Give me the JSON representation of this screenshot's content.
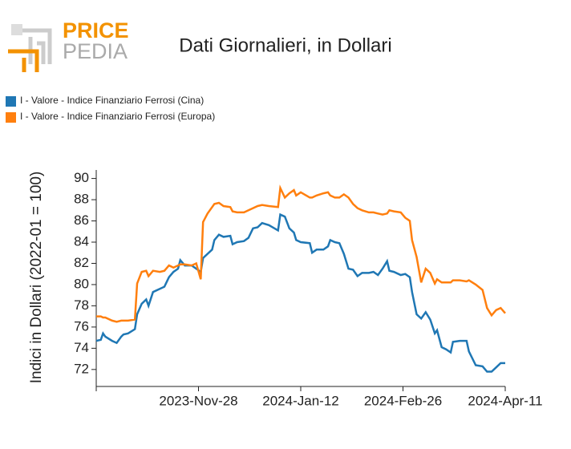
{
  "logo": {
    "top": "PRICE",
    "bottom": "PEDIA"
  },
  "chart_data": {
    "type": "line",
    "title": "Dati Giornalieri, in Dollari",
    "y_label": "Indici in Dollari (2022-01 = 100)",
    "legend": "top-left",
    "x": [
      "2023-10-14",
      "2023-10-16",
      "2023-10-17",
      "2023-10-18",
      "2023-10-21",
      "2023-10-23",
      "2023-10-25",
      "2023-10-26",
      "2023-10-28",
      "2023-10-31",
      "2023-11-01",
      "2023-11-03",
      "2023-11-05",
      "2023-11-06",
      "2023-11-08",
      "2023-11-11",
      "2023-11-13",
      "2023-11-15",
      "2023-11-17",
      "2023-11-19",
      "2023-11-20",
      "2023-11-22",
      "2023-11-25",
      "2023-11-27",
      "2023-11-29",
      "2023-11-30",
      "2023-12-02",
      "2023-12-04",
      "2023-12-05",
      "2023-12-07",
      "2023-12-09",
      "2023-12-12",
      "2023-12-13",
      "2023-12-15",
      "2023-12-18",
      "2023-12-20",
      "2023-12-22",
      "2023-12-24",
      "2023-12-26",
      "2023-12-29",
      "2024-01-02",
      "2024-01-03",
      "2024-01-05",
      "2024-01-07",
      "2024-01-09",
      "2024-01-10",
      "2024-01-12",
      "2024-01-16",
      "2024-01-17",
      "2024-01-19",
      "2024-01-22",
      "2024-01-24",
      "2024-01-25",
      "2024-01-27",
      "2024-01-29",
      "2024-01-31",
      "2024-02-02",
      "2024-02-04",
      "2024-02-06",
      "2024-02-08",
      "2024-02-11",
      "2024-02-13",
      "2024-02-15",
      "2024-02-17",
      "2024-02-19",
      "2024-02-20",
      "2024-02-22",
      "2024-02-25",
      "2024-02-27",
      "2024-02-29",
      "2024-03-01",
      "2024-03-03",
      "2024-03-05",
      "2024-03-07",
      "2024-03-09",
      "2024-03-11",
      "2024-03-12",
      "2024-03-14",
      "2024-03-16",
      "2024-03-18",
      "2024-03-19",
      "2024-03-22",
      "2024-03-25",
      "2024-03-26",
      "2024-03-29",
      "2024-04-01",
      "2024-04-03",
      "2024-04-05",
      "2024-04-07",
      "2024-04-09",
      "2024-04-11"
    ],
    "series": [
      {
        "name": "I - Valore - Indice Finanziario Ferrosi (Cina)",
        "color": "#1f77b4",
        "values": [
          74.7,
          74.8,
          75.4,
          75.1,
          74.7,
          74.5,
          75.1,
          75.3,
          75.4,
          75.8,
          77.2,
          78.2,
          78.6,
          78.0,
          79.3,
          79.6,
          79.8,
          80.7,
          81.2,
          81.5,
          82.3,
          81.8,
          81.8,
          81.5,
          81.2,
          82.5,
          82.9,
          83.3,
          84.2,
          84.7,
          84.5,
          84.6,
          83.8,
          84.0,
          84.1,
          84.4,
          85.3,
          85.4,
          85.8,
          85.6,
          85.1,
          86.6,
          86.4,
          85.3,
          84.9,
          84.2,
          84.0,
          83.9,
          83.0,
          83.3,
          83.3,
          83.6,
          84.2,
          84.0,
          83.9,
          82.9,
          81.5,
          81.4,
          80.8,
          81.1,
          81.1,
          81.2,
          80.9,
          81.5,
          82.2,
          81.3,
          81.2,
          80.9,
          81.0,
          80.7,
          79.3,
          77.2,
          76.8,
          77.4,
          76.7,
          75.4,
          75.7,
          74.1,
          73.9,
          73.6,
          74.6,
          74.7,
          74.7,
          73.7,
          72.4,
          72.3,
          71.8,
          71.8,
          72.2,
          72.6,
          72.6
        ]
      },
      {
        "name": "I - Valore - Indice Finanziario Ferrosi (Europa)",
        "color": "#ff7f0e",
        "values": [
          77.0,
          77.0,
          76.9,
          76.9,
          76.6,
          76.5,
          76.6,
          76.6,
          76.6,
          76.7,
          80.1,
          81.2,
          81.3,
          80.8,
          81.3,
          81.2,
          81.3,
          81.8,
          81.6,
          81.8,
          81.9,
          81.9,
          81.8,
          82.0,
          80.5,
          85.9,
          86.7,
          87.3,
          87.6,
          87.7,
          87.4,
          87.3,
          86.9,
          86.8,
          86.8,
          87.0,
          87.2,
          87.4,
          87.5,
          87.4,
          87.3,
          89.1,
          88.2,
          88.6,
          88.9,
          88.4,
          88.7,
          88.2,
          88.2,
          88.4,
          88.6,
          88.7,
          88.4,
          88.2,
          88.2,
          88.5,
          88.2,
          87.6,
          87.2,
          87.0,
          86.8,
          86.8,
          86.7,
          86.6,
          86.7,
          87.0,
          86.9,
          86.8,
          86.3,
          86.0,
          84.2,
          82.6,
          80.2,
          81.5,
          81.1,
          80.1,
          80.5,
          80.2,
          80.2,
          80.2,
          80.4,
          80.4,
          80.3,
          80.4,
          80.0,
          79.5,
          77.8,
          77.1,
          77.6,
          77.8,
          77.3
        ]
      }
    ],
    "xlim": [
      "2023-10-14",
      "2024-04-11"
    ],
    "xticks": [
      {
        "value": "2023-10-14",
        "label": null
      },
      {
        "value": "2023-11-28",
        "label": "2023-Nov-28"
      },
      {
        "value": "2024-01-12",
        "label": "2024-Jan-12"
      },
      {
        "value": "2024-02-26",
        "label": "2024-Feb-26"
      },
      {
        "value": "2024-04-11",
        "label": "2024-Apr-11"
      }
    ],
    "ylim": [
      70.4,
      90.8
    ],
    "yticks": [
      72,
      74,
      76,
      78,
      80,
      82,
      84,
      86,
      88,
      90
    ]
  }
}
